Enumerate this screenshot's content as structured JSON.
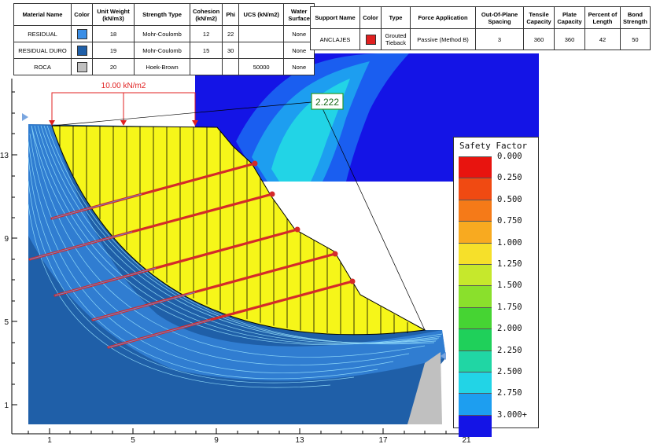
{
  "materials": {
    "headers": [
      "Material Name",
      "Color",
      "Unit Weight (kN/m3)",
      "Strength Type",
      "Cohesion (kN/m2)",
      "Phi",
      "UCS (kN/m2)",
      "Water Surface"
    ],
    "rows": [
      {
        "name": "RESIDUAL",
        "color": "#3a8ee6",
        "unit_weight": "18",
        "strength_type": "Mohr-Coulomb",
        "cohesion": "12",
        "phi": "22",
        "ucs": "",
        "water_surface": "None"
      },
      {
        "name": "RESIDUAL DURO",
        "color": "#1f5fa8",
        "unit_weight": "19",
        "strength_type": "Mohr-Coulomb",
        "cohesion": "15",
        "phi": "30",
        "ucs": "",
        "water_surface": "None"
      },
      {
        "name": "ROCA",
        "color": "#c0c0c0",
        "unit_weight": "20",
        "strength_type": "Hoek-Brown",
        "cohesion": "",
        "phi": "",
        "ucs": "50000",
        "water_surface": "None"
      }
    ]
  },
  "supports": {
    "headers": [
      "Support Name",
      "Color",
      "Type",
      "Force Application",
      "Out-Of-Plane Spacing",
      "Tensile Capacity",
      "Plate Capacity",
      "Percent of Length",
      "Bond Strength"
    ],
    "rows": [
      {
        "name": "ANCLAJES",
        "color": "#e02020",
        "type": "Grouted Tieback",
        "force_application": "Passive (Method B)",
        "spacing": "3",
        "tensile": "360",
        "plate": "360",
        "percent": "42",
        "bond": "50"
      }
    ]
  },
  "load_label": "10.00 kN/m2",
  "safety_factor_value": "2.222",
  "axes": {
    "x_ticks": [
      "1",
      "5",
      "9",
      "13",
      "17",
      "21"
    ],
    "y_ticks": [
      "13",
      "9",
      "5",
      "1"
    ]
  },
  "legend": {
    "title": "Safety Factor",
    "entries": [
      {
        "label": "0.000",
        "color": "#e8140f"
      },
      {
        "label": "0.250",
        "color": "#f04a12"
      },
      {
        "label": "0.500",
        "color": "#f57a18"
      },
      {
        "label": "0.750",
        "color": "#f8aa20"
      },
      {
        "label": "1.000",
        "color": "#f6e02a"
      },
      {
        "label": "1.250",
        "color": "#c6e82c"
      },
      {
        "label": "1.500",
        "color": "#8ae02c"
      },
      {
        "label": "1.750",
        "color": "#46d433"
      },
      {
        "label": "2.000",
        "color": "#1fd05a"
      },
      {
        "label": "2.250",
        "color": "#20d6a4"
      },
      {
        "label": "2.500",
        "color": "#22d4e6"
      },
      {
        "label": "2.750",
        "color": "#1d9ef0"
      },
      {
        "label": "3.000+",
        "color": "#1a5ef0"
      }
    ],
    "last_color": "#1414e6"
  }
}
